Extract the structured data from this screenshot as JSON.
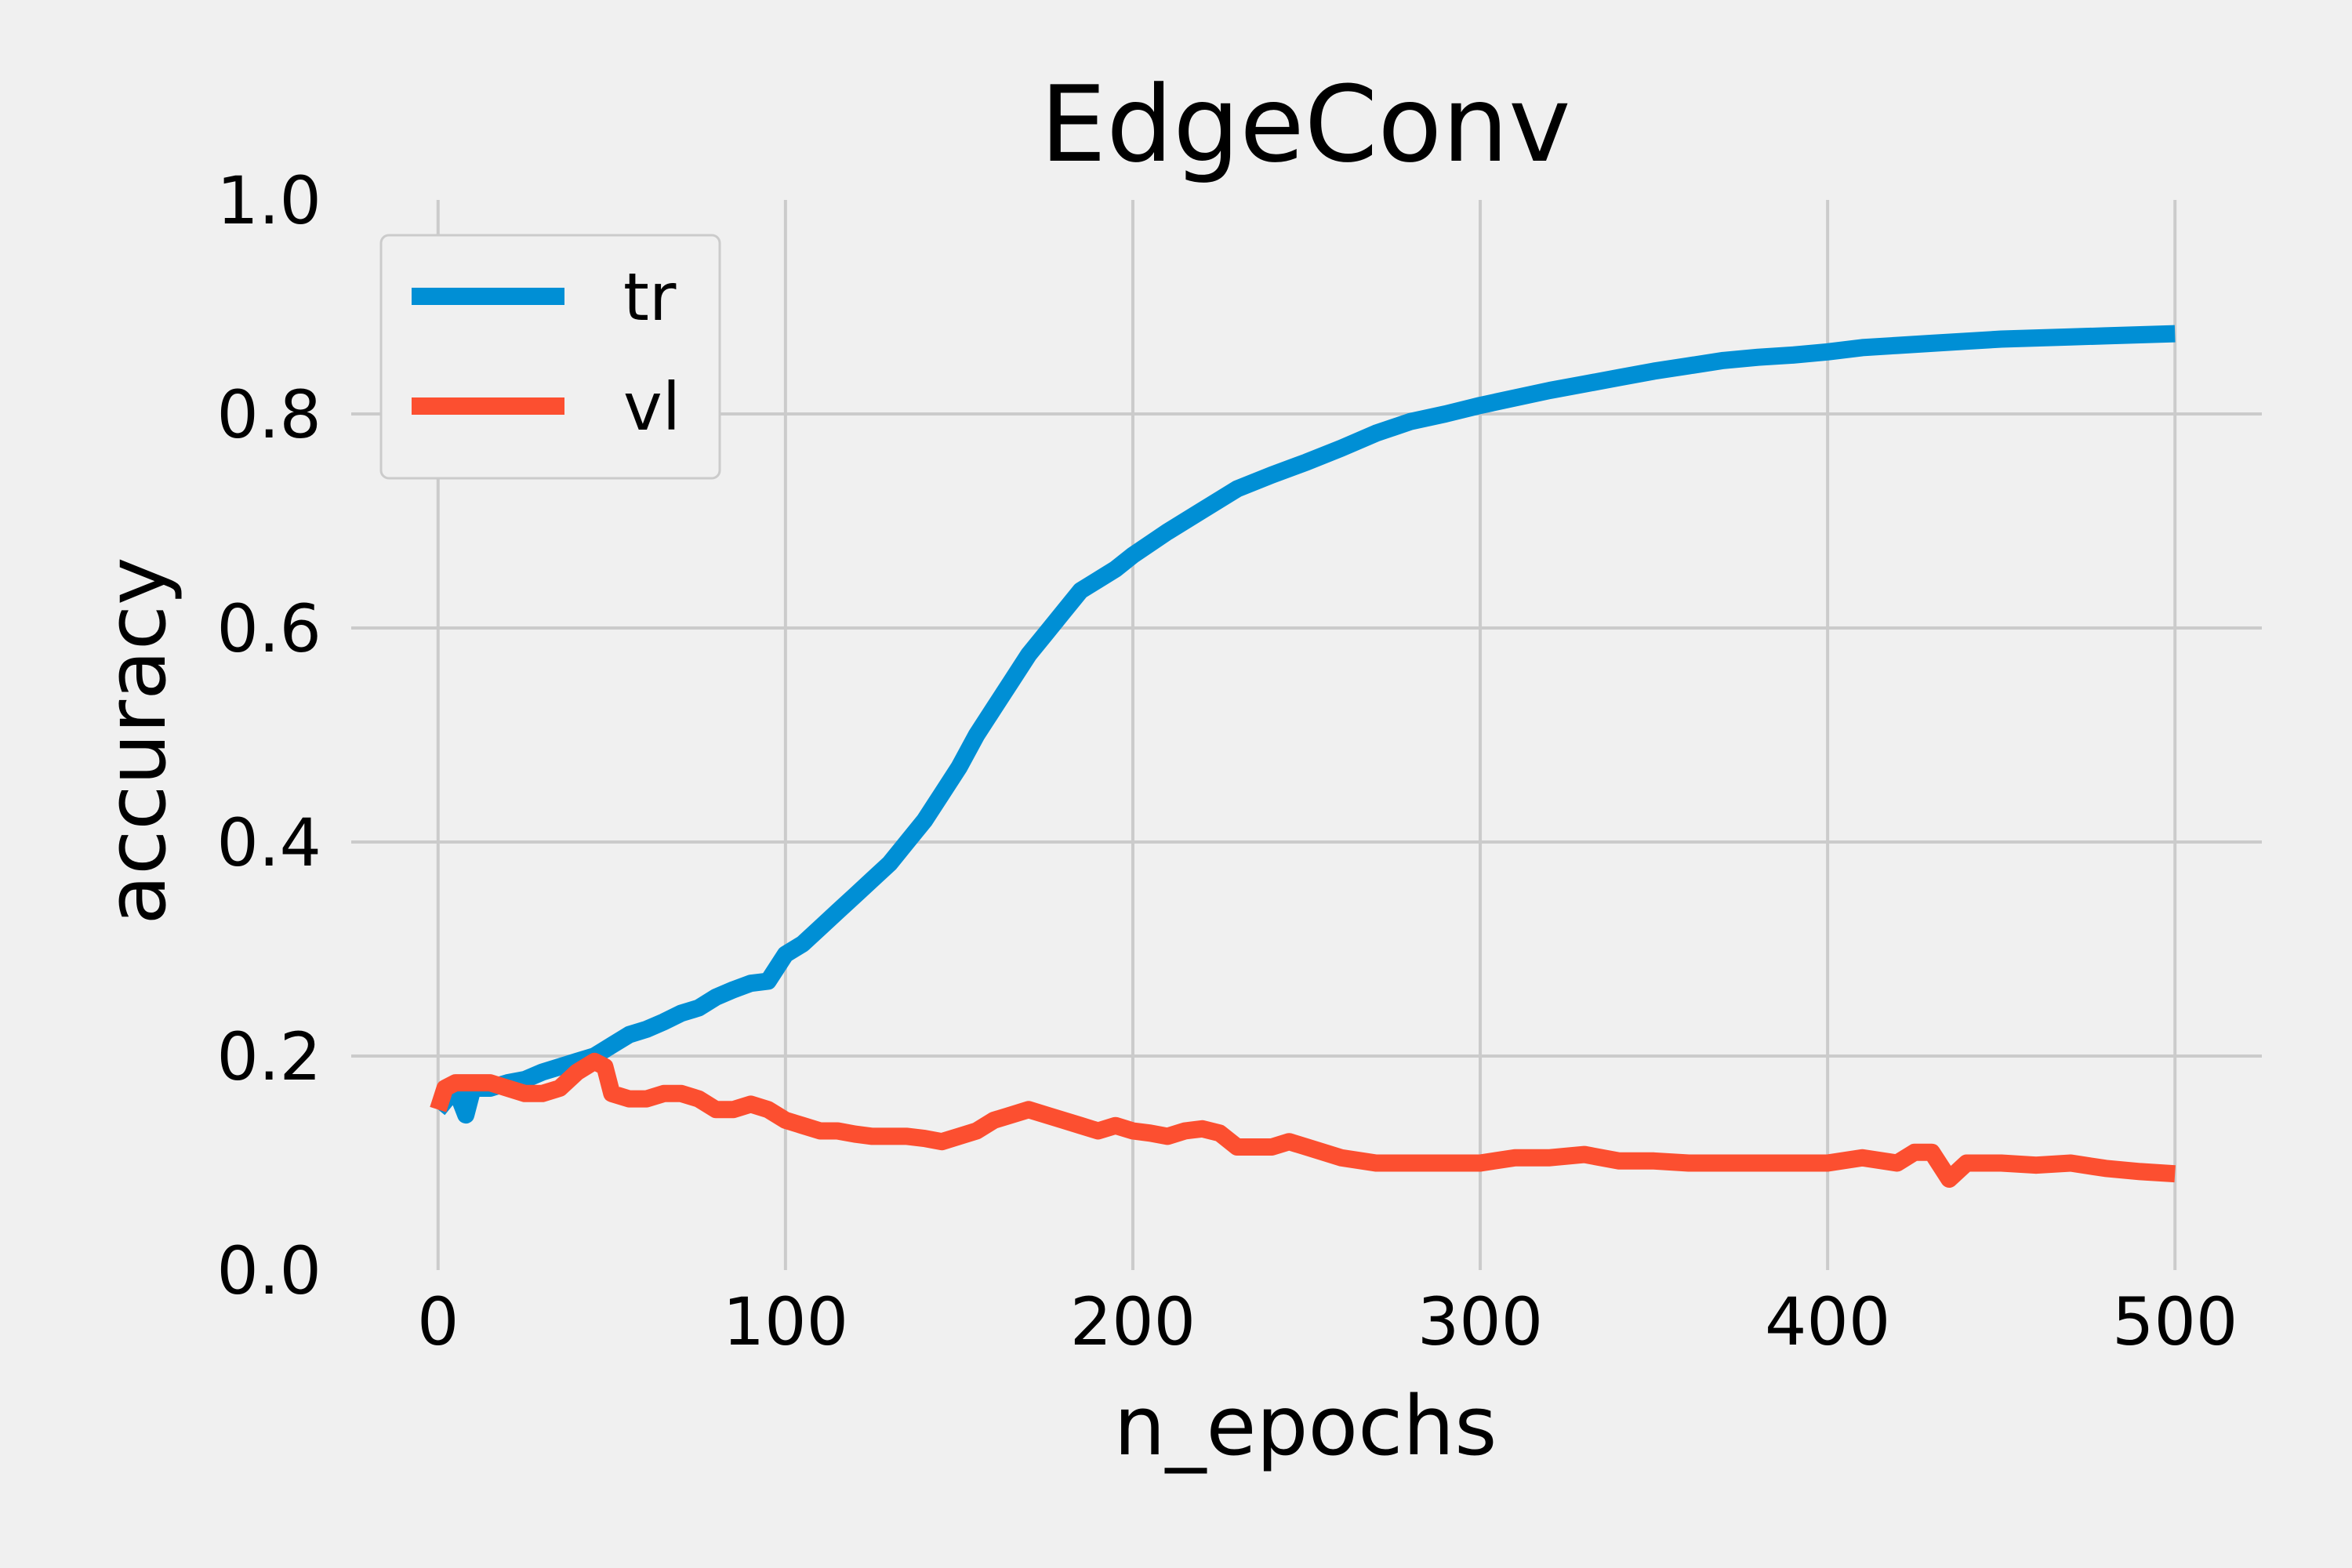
{
  "chart_data": {
    "type": "line",
    "title": "EdgeConv",
    "xlabel": "n_epochs",
    "ylabel": "accuracy",
    "xlim": [
      -25,
      525
    ],
    "ylim": [
      0.0,
      1.0
    ],
    "xticks": [
      0,
      100,
      200,
      300,
      400,
      500
    ],
    "yticks": [
      0.0,
      0.2,
      0.4,
      0.6,
      0.8,
      1.0
    ],
    "xtick_labels": [
      "0",
      "100",
      "200",
      "300",
      "400",
      "500"
    ],
    "ytick_labels": [
      "0.0",
      "0.2",
      "0.4",
      "0.6",
      "0.8",
      "1.0"
    ],
    "grid": true,
    "legend_position": "top-left",
    "series": [
      {
        "name": "tr",
        "color": "#008fd5",
        "x": [
          0,
          5,
          8,
          10,
          15,
          20,
          25,
          30,
          35,
          40,
          45,
          50,
          55,
          60,
          65,
          70,
          75,
          80,
          85,
          90,
          95,
          100,
          105,
          110,
          115,
          120,
          125,
          130,
          135,
          140,
          145,
          150,
          155,
          160,
          165,
          170,
          175,
          180,
          185,
          190,
          195,
          200,
          210,
          220,
          230,
          240,
          250,
          260,
          270,
          280,
          290,
          300,
          310,
          320,
          330,
          340,
          350,
          360,
          370,
          380,
          390,
          400,
          410,
          420,
          430,
          440,
          450,
          460,
          470,
          480,
          490,
          500
        ],
        "y": [
          0.15,
          0.17,
          0.145,
          0.17,
          0.17,
          0.175,
          0.178,
          0.185,
          0.19,
          0.195,
          0.2,
          0.21,
          0.22,
          0.225,
          0.232,
          0.24,
          0.245,
          0.255,
          0.262,
          0.268,
          0.27,
          0.295,
          0.305,
          0.32,
          0.335,
          0.35,
          0.365,
          0.38,
          0.4,
          0.42,
          0.445,
          0.47,
          0.5,
          0.525,
          0.55,
          0.575,
          0.595,
          0.615,
          0.635,
          0.645,
          0.655,
          0.668,
          0.69,
          0.71,
          0.73,
          0.743,
          0.755,
          0.768,
          0.782,
          0.793,
          0.8,
          0.808,
          0.815,
          0.822,
          0.828,
          0.834,
          0.84,
          0.845,
          0.85,
          0.853,
          0.855,
          0.858,
          0.862,
          0.864,
          0.866,
          0.868,
          0.87,
          0.871,
          0.872,
          0.873,
          0.874,
          0.875
        ]
      },
      {
        "name": "vl",
        "color": "#fc4f30",
        "x": [
          0,
          2,
          5,
          10,
          15,
          20,
          25,
          30,
          35,
          40,
          45,
          48,
          50,
          55,
          60,
          65,
          70,
          75,
          80,
          85,
          90,
          95,
          100,
          105,
          110,
          115,
          120,
          125,
          130,
          135,
          140,
          145,
          150,
          155,
          160,
          165,
          170,
          175,
          180,
          185,
          190,
          195,
          200,
          205,
          210,
          215,
          220,
          225,
          230,
          240,
          245,
          250,
          260,
          270,
          280,
          290,
          300,
          310,
          320,
          330,
          340,
          350,
          360,
          370,
          380,
          390,
          400,
          410,
          420,
          425,
          430,
          435,
          440,
          450,
          460,
          470,
          480,
          490,
          500
        ],
        "y": [
          0.15,
          0.17,
          0.175,
          0.175,
          0.175,
          0.17,
          0.165,
          0.165,
          0.17,
          0.185,
          0.195,
          0.19,
          0.165,
          0.16,
          0.16,
          0.165,
          0.165,
          0.16,
          0.15,
          0.15,
          0.155,
          0.15,
          0.14,
          0.135,
          0.13,
          0.13,
          0.127,
          0.125,
          0.125,
          0.125,
          0.123,
          0.12,
          0.125,
          0.13,
          0.14,
          0.145,
          0.15,
          0.145,
          0.14,
          0.135,
          0.13,
          0.135,
          0.13,
          0.128,
          0.125,
          0.13,
          0.132,
          0.128,
          0.115,
          0.115,
          0.12,
          0.115,
          0.105,
          0.1,
          0.1,
          0.1,
          0.1,
          0.105,
          0.105,
          0.108,
          0.102,
          0.102,
          0.1,
          0.1,
          0.1,
          0.1,
          0.1,
          0.105,
          0.1,
          0.11,
          0.11,
          0.085,
          0.1,
          0.1,
          0.098,
          0.1,
          0.095,
          0.092,
          0.09
        ]
      }
    ]
  }
}
